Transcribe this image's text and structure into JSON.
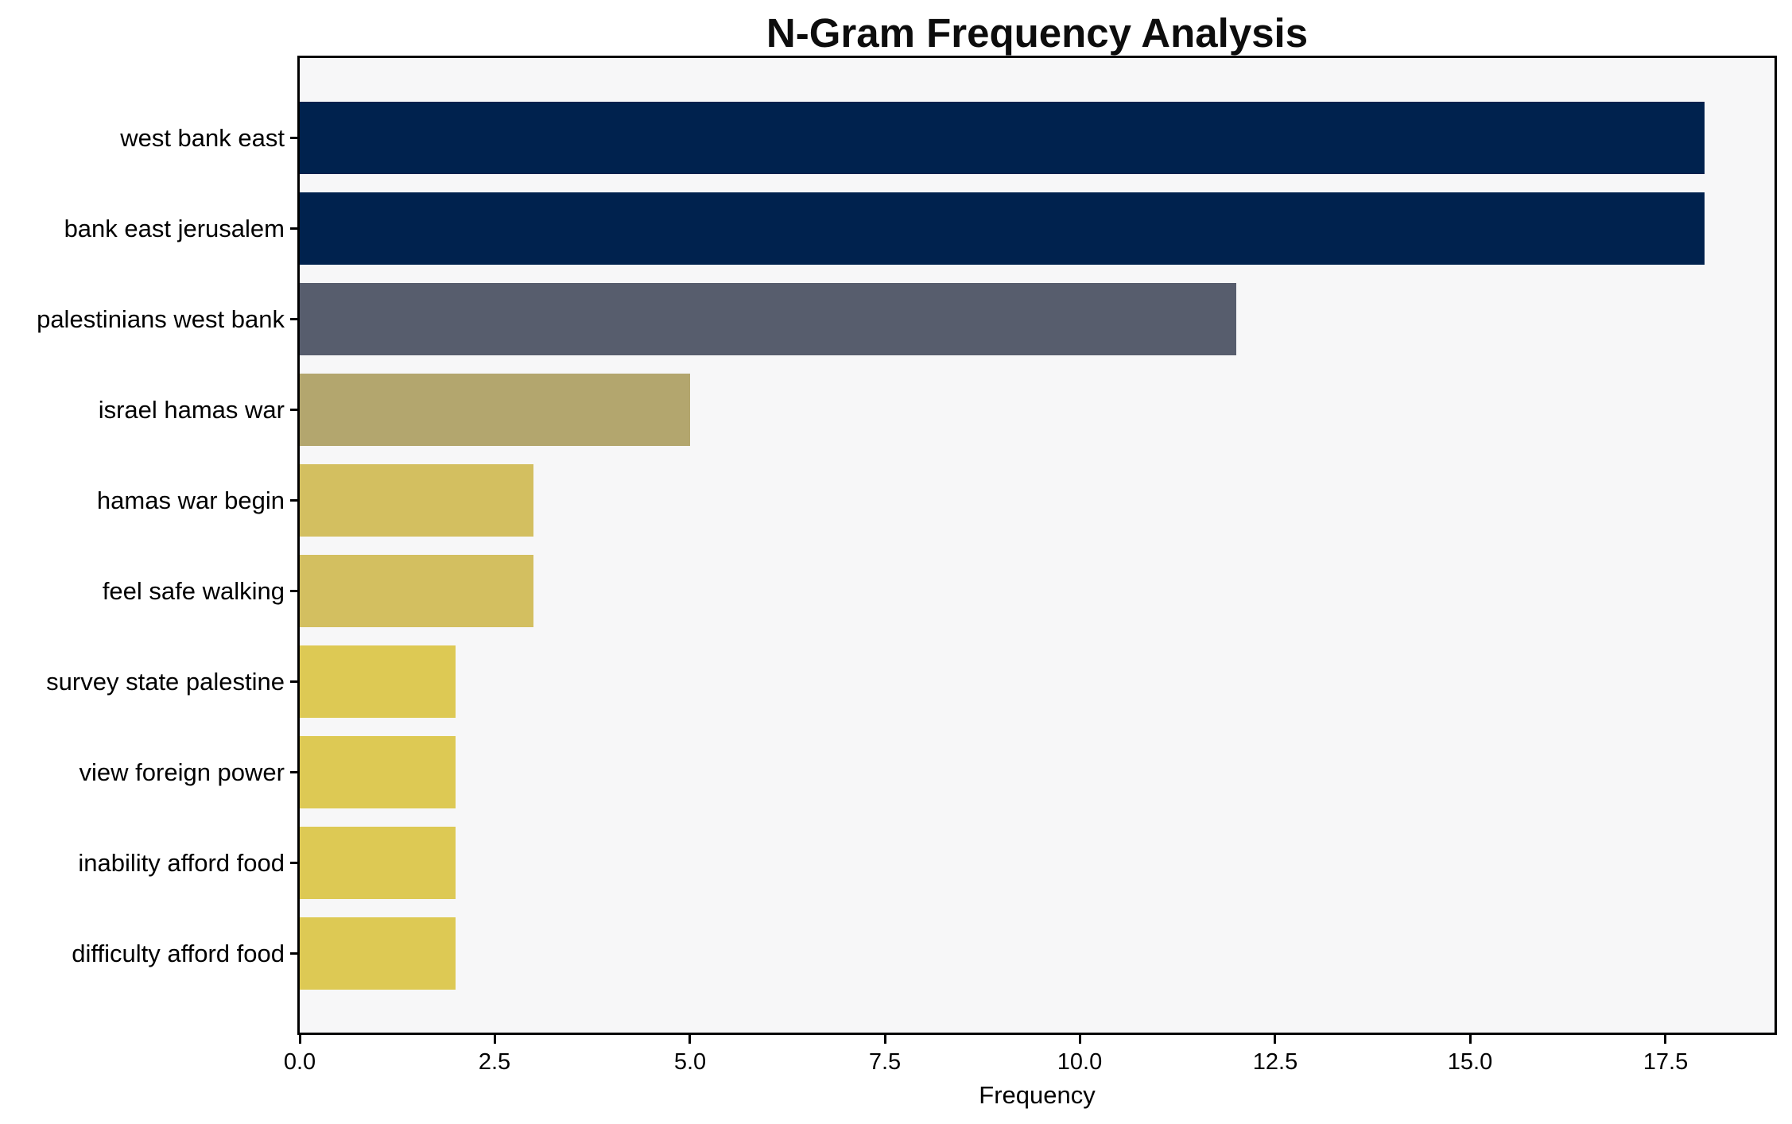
{
  "title": "N-Gram Frequency Analysis",
  "chart_data": {
    "type": "bar",
    "orientation": "horizontal",
    "title": "N-Gram Frequency Analysis",
    "xlabel": "Frequency",
    "ylabel": "",
    "categories": [
      "west bank east",
      "bank east jerusalem",
      "palestinians west bank",
      "israel hamas war",
      "hamas war begin",
      "feel safe walking",
      "survey state palestine",
      "view foreign power",
      "inability afford food",
      "difficulty afford food"
    ],
    "values": [
      18,
      18,
      12,
      5,
      3,
      3,
      2,
      2,
      2,
      2
    ],
    "bar_colors": [
      "#00224e",
      "#00224e",
      "#575d6d",
      "#b3a66e",
      "#d3bf60",
      "#d3bf60",
      "#ddc954",
      "#ddc954",
      "#ddc954",
      "#ddc954"
    ],
    "xlim": [
      0,
      18.9
    ],
    "xticks": [
      0,
      2.5,
      5,
      7.5,
      10,
      12.5,
      15,
      17.5
    ],
    "xtick_labels": [
      "0.0",
      "2.5",
      "5.0",
      "7.5",
      "10.0",
      "12.5",
      "15.0",
      "17.5"
    ],
    "grid": false,
    "legend": null,
    "colors": {
      "axes_background": "#f7f7f8",
      "figure_background": "#ffffff",
      "spine": "#000000",
      "text": "#000000"
    }
  }
}
